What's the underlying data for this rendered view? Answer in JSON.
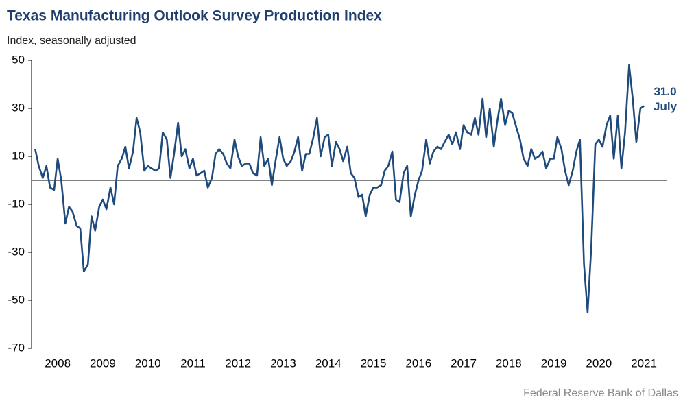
{
  "chart_data": {
    "type": "line",
    "title": "Texas Manufacturing Outlook Survey Production Index",
    "subtitle": "Index, seasonally adjusted",
    "source": "Federal Reserve Bank of Dallas",
    "annotation_value": "31.0",
    "annotation_label": "July",
    "x": [
      2008.0,
      2008.08,
      2008.17,
      2008.25,
      2008.33,
      2008.42,
      2008.5,
      2008.58,
      2008.67,
      2008.75,
      2008.83,
      2008.92,
      2009.0,
      2009.08,
      2009.17,
      2009.25,
      2009.33,
      2009.42,
      2009.5,
      2009.58,
      2009.67,
      2009.75,
      2009.83,
      2009.92,
      2010.0,
      2010.08,
      2010.17,
      2010.25,
      2010.33,
      2010.42,
      2010.5,
      2010.58,
      2010.67,
      2010.75,
      2010.83,
      2010.92,
      2011.0,
      2011.08,
      2011.17,
      2011.25,
      2011.33,
      2011.42,
      2011.5,
      2011.58,
      2011.67,
      2011.75,
      2011.83,
      2011.92,
      2012.0,
      2012.08,
      2012.17,
      2012.25,
      2012.33,
      2012.42,
      2012.5,
      2012.58,
      2012.67,
      2012.75,
      2012.83,
      2012.92,
      2013.0,
      2013.08,
      2013.17,
      2013.25,
      2013.33,
      2013.42,
      2013.5,
      2013.58,
      2013.67,
      2013.75,
      2013.83,
      2013.92,
      2014.0,
      2014.08,
      2014.17,
      2014.25,
      2014.33,
      2014.42,
      2014.5,
      2014.58,
      2014.67,
      2014.75,
      2014.83,
      2014.92,
      2015.0,
      2015.08,
      2015.17,
      2015.25,
      2015.33,
      2015.42,
      2015.5,
      2015.58,
      2015.67,
      2015.75,
      2015.83,
      2015.92,
      2016.0,
      2016.08,
      2016.17,
      2016.25,
      2016.33,
      2016.42,
      2016.5,
      2016.58,
      2016.67,
      2016.75,
      2016.83,
      2016.92,
      2017.0,
      2017.08,
      2017.17,
      2017.25,
      2017.33,
      2017.42,
      2017.5,
      2017.58,
      2017.67,
      2017.75,
      2017.83,
      2017.92,
      2018.0,
      2018.08,
      2018.17,
      2018.25,
      2018.33,
      2018.42,
      2018.5,
      2018.58,
      2018.67,
      2018.75,
      2018.83,
      2018.92,
      2019.0,
      2019.08,
      2019.17,
      2019.25,
      2019.33,
      2019.42,
      2019.5,
      2019.58,
      2019.67,
      2019.75,
      2019.83,
      2019.92,
      2020.0,
      2020.08,
      2020.17,
      2020.25,
      2020.33,
      2020.42,
      2020.5,
      2020.58,
      2020.67,
      2020.75,
      2020.83,
      2020.92,
      2021.0,
      2021.08,
      2021.17,
      2021.25,
      2021.33,
      2021.42,
      2021.5
    ],
    "series": [
      {
        "name": "Production Index",
        "color": "#1f4a7c",
        "values": [
          13,
          6,
          1,
          6,
          -3,
          -4,
          9,
          0,
          -18,
          -11,
          -13,
          -19,
          -20,
          -38,
          -35,
          -15,
          -21,
          -11,
          -8,
          -12,
          -3,
          -10,
          6,
          9,
          14,
          5,
          12,
          26,
          20,
          4,
          6,
          5,
          4,
          5,
          20,
          17,
          1,
          11,
          24,
          10,
          13,
          5,
          9,
          2,
          3,
          4,
          -3,
          1,
          11,
          13,
          11,
          7,
          5,
          17,
          10,
          6,
          7,
          7,
          3,
          2,
          18,
          6,
          9,
          -2,
          8,
          18,
          9,
          6,
          8,
          12,
          18,
          4,
          11,
          11,
          18,
          26,
          10,
          18,
          19,
          6,
          16,
          13,
          8,
          14,
          3,
          1,
          -7,
          -6,
          -15,
          -6,
          -3,
          -3,
          -2,
          4,
          6,
          12,
          -8,
          -9,
          3,
          6,
          -15,
          -6,
          0,
          4,
          17,
          7,
          12,
          14,
          13,
          16,
          19,
          15,
          20,
          13,
          23,
          20,
          19,
          26,
          19,
          34,
          18,
          30,
          14,
          25,
          34,
          23,
          29,
          28,
          22,
          17,
          9,
          6,
          13,
          9,
          10,
          12,
          5,
          9,
          9,
          18,
          13,
          4,
          -2,
          4,
          12,
          17,
          -35,
          -55,
          -28,
          15,
          17,
          14,
          23,
          27,
          9,
          27,
          5,
          20,
          48,
          34,
          16,
          30,
          31
        ]
      }
    ],
    "xlim": [
      2007.92,
      2022.0
    ],
    "xticks": [
      {
        "value": 2008.5,
        "label": "2008"
      },
      {
        "value": 2009.5,
        "label": "2009"
      },
      {
        "value": 2010.5,
        "label": "2010"
      },
      {
        "value": 2011.5,
        "label": "2011"
      },
      {
        "value": 2012.5,
        "label": "2012"
      },
      {
        "value": 2013.5,
        "label": "2013"
      },
      {
        "value": 2014.5,
        "label": "2014"
      },
      {
        "value": 2015.5,
        "label": "2015"
      },
      {
        "value": 2016.5,
        "label": "2016"
      },
      {
        "value": 2017.5,
        "label": "2017"
      },
      {
        "value": 2018.5,
        "label": "2018"
      },
      {
        "value": 2019.5,
        "label": "2019"
      },
      {
        "value": 2020.5,
        "label": "2020"
      },
      {
        "value": 2021.5,
        "label": "2021"
      }
    ],
    "ylim": [
      -70,
      50
    ],
    "yticks": [
      50,
      30,
      10,
      -10,
      -30,
      -50,
      -70
    ],
    "grid": false
  }
}
